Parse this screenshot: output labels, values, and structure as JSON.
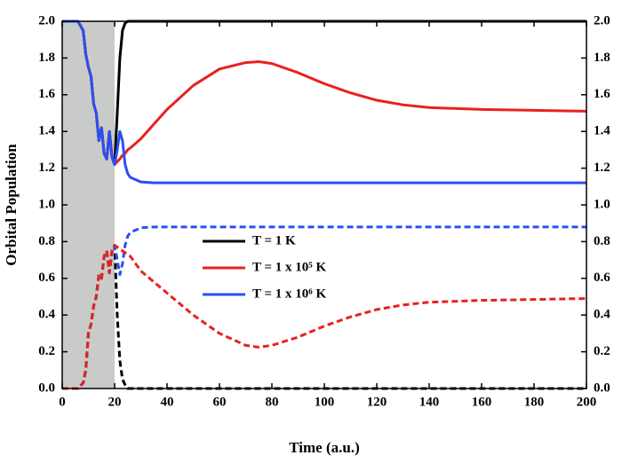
{
  "chart_data": {
    "type": "line",
    "xlabel": "Time (a.u.)",
    "ylabel": "Orbital Population",
    "x": [
      0,
      2,
      4,
      6,
      8,
      9,
      10,
      11,
      12,
      13,
      14,
      15,
      16,
      17,
      18,
      19,
      20,
      21,
      22,
      23,
      24,
      25,
      26,
      30,
      35,
      40,
      50,
      60,
      70,
      75,
      80,
      90,
      100,
      110,
      120,
      130,
      140,
      160,
      180,
      200
    ],
    "series": [
      {
        "name": "T = 1 K",
        "color": "#000000",
        "dashed": false,
        "values": [
          2.0,
          2.0,
          2.0,
          2.0,
          1.95,
          1.82,
          1.75,
          1.7,
          1.55,
          1.5,
          1.35,
          1.42,
          1.28,
          1.25,
          1.4,
          1.26,
          1.22,
          1.5,
          1.8,
          1.95,
          1.99,
          2.0,
          2.0,
          2.0,
          2.0,
          2.0,
          2.0,
          2.0,
          2.0,
          2.0,
          2.0,
          2.0,
          2.0,
          2.0,
          2.0,
          2.0,
          2.0,
          2.0,
          2.0,
          2.0
        ]
      },
      {
        "name": "T = 1 x 10⁵ K",
        "color": "#e8211e",
        "dashed": false,
        "values": [
          2.0,
          2.0,
          2.0,
          2.0,
          1.95,
          1.82,
          1.75,
          1.7,
          1.55,
          1.5,
          1.35,
          1.42,
          1.28,
          1.25,
          1.4,
          1.26,
          1.22,
          1.235,
          1.25,
          1.27,
          1.28,
          1.3,
          1.31,
          1.36,
          1.44,
          1.52,
          1.65,
          1.74,
          1.775,
          1.78,
          1.77,
          1.72,
          1.66,
          1.61,
          1.57,
          1.545,
          1.53,
          1.52,
          1.515,
          1.51
        ]
      },
      {
        "name": "T = 1 x 10⁶ K",
        "color": "#2a4ff0",
        "dashed": false,
        "values": [
          2.0,
          2.0,
          2.0,
          2.0,
          1.95,
          1.82,
          1.75,
          1.7,
          1.55,
          1.5,
          1.35,
          1.42,
          1.28,
          1.25,
          1.4,
          1.26,
          1.22,
          1.3,
          1.4,
          1.35,
          1.22,
          1.17,
          1.15,
          1.125,
          1.12,
          1.12,
          1.12,
          1.12,
          1.12,
          1.12,
          1.12,
          1.12,
          1.12,
          1.12,
          1.12,
          1.12,
          1.12,
          1.12,
          1.12,
          1.12
        ]
      },
      {
        "color": "#000000",
        "dashed": true,
        "values": [
          0,
          0,
          0,
          0,
          0.03,
          0.1,
          0.3,
          0.35,
          0.45,
          0.5,
          0.62,
          0.6,
          0.72,
          0.75,
          0.63,
          0.75,
          0.78,
          0.4,
          0.15,
          0.05,
          0.02,
          0,
          0,
          0,
          0,
          0,
          0,
          0,
          0,
          0,
          0,
          0,
          0,
          0,
          0,
          0,
          0,
          0,
          0,
          0
        ]
      },
      {
        "color": "#2a4ff0",
        "dashed": true,
        "values": [
          0,
          0,
          0,
          0,
          0.03,
          0.1,
          0.3,
          0.35,
          0.45,
          0.5,
          0.62,
          0.6,
          0.72,
          0.75,
          0.63,
          0.75,
          0.78,
          0.7,
          0.62,
          0.68,
          0.78,
          0.83,
          0.85,
          0.875,
          0.88,
          0.88,
          0.88,
          0.88,
          0.88,
          0.88,
          0.88,
          0.88,
          0.88,
          0.88,
          0.88,
          0.88,
          0.88,
          0.88,
          0.88,
          0.88
        ]
      },
      {
        "color": "#e8211e",
        "dashed": true,
        "values": [
          0,
          0,
          0,
          0,
          0.03,
          0.1,
          0.3,
          0.35,
          0.45,
          0.5,
          0.62,
          0.6,
          0.72,
          0.75,
          0.63,
          0.75,
          0.78,
          0.77,
          0.76,
          0.75,
          0.74,
          0.73,
          0.72,
          0.64,
          0.58,
          0.52,
          0.4,
          0.3,
          0.235,
          0.225,
          0.235,
          0.28,
          0.34,
          0.39,
          0.43,
          0.455,
          0.47,
          0.48,
          0.485,
          0.49
        ]
      }
    ],
    "shaded_xrange": [
      0,
      20
    ],
    "shade_color": "#c9cbc9",
    "xlim": [
      0,
      200
    ],
    "xticks": [
      0,
      20,
      40,
      60,
      80,
      100,
      120,
      140,
      160,
      180,
      200
    ],
    "ylim": [
      0,
      2.0
    ],
    "yticks": [
      {
        "value": 0,
        "label": "0.0"
      },
      {
        "value": 0.2,
        "label": "0.2"
      },
      {
        "value": 0.4,
        "label": "0.4"
      },
      {
        "value": 0.6,
        "label": "0.6"
      },
      {
        "value": 0.8,
        "label": "0.8"
      },
      {
        "value": 1.0,
        "label": "1.0"
      },
      {
        "value": 1.2,
        "label": "1.2"
      },
      {
        "value": 1.4,
        "label": "1.4"
      },
      {
        "value": 1.6,
        "label": "1.6"
      },
      {
        "value": 1.8,
        "label": "1.8"
      },
      {
        "value": 2.0,
        "label": "2.0"
      }
    ],
    "mirror_y_axis": true,
    "legend": "center"
  }
}
